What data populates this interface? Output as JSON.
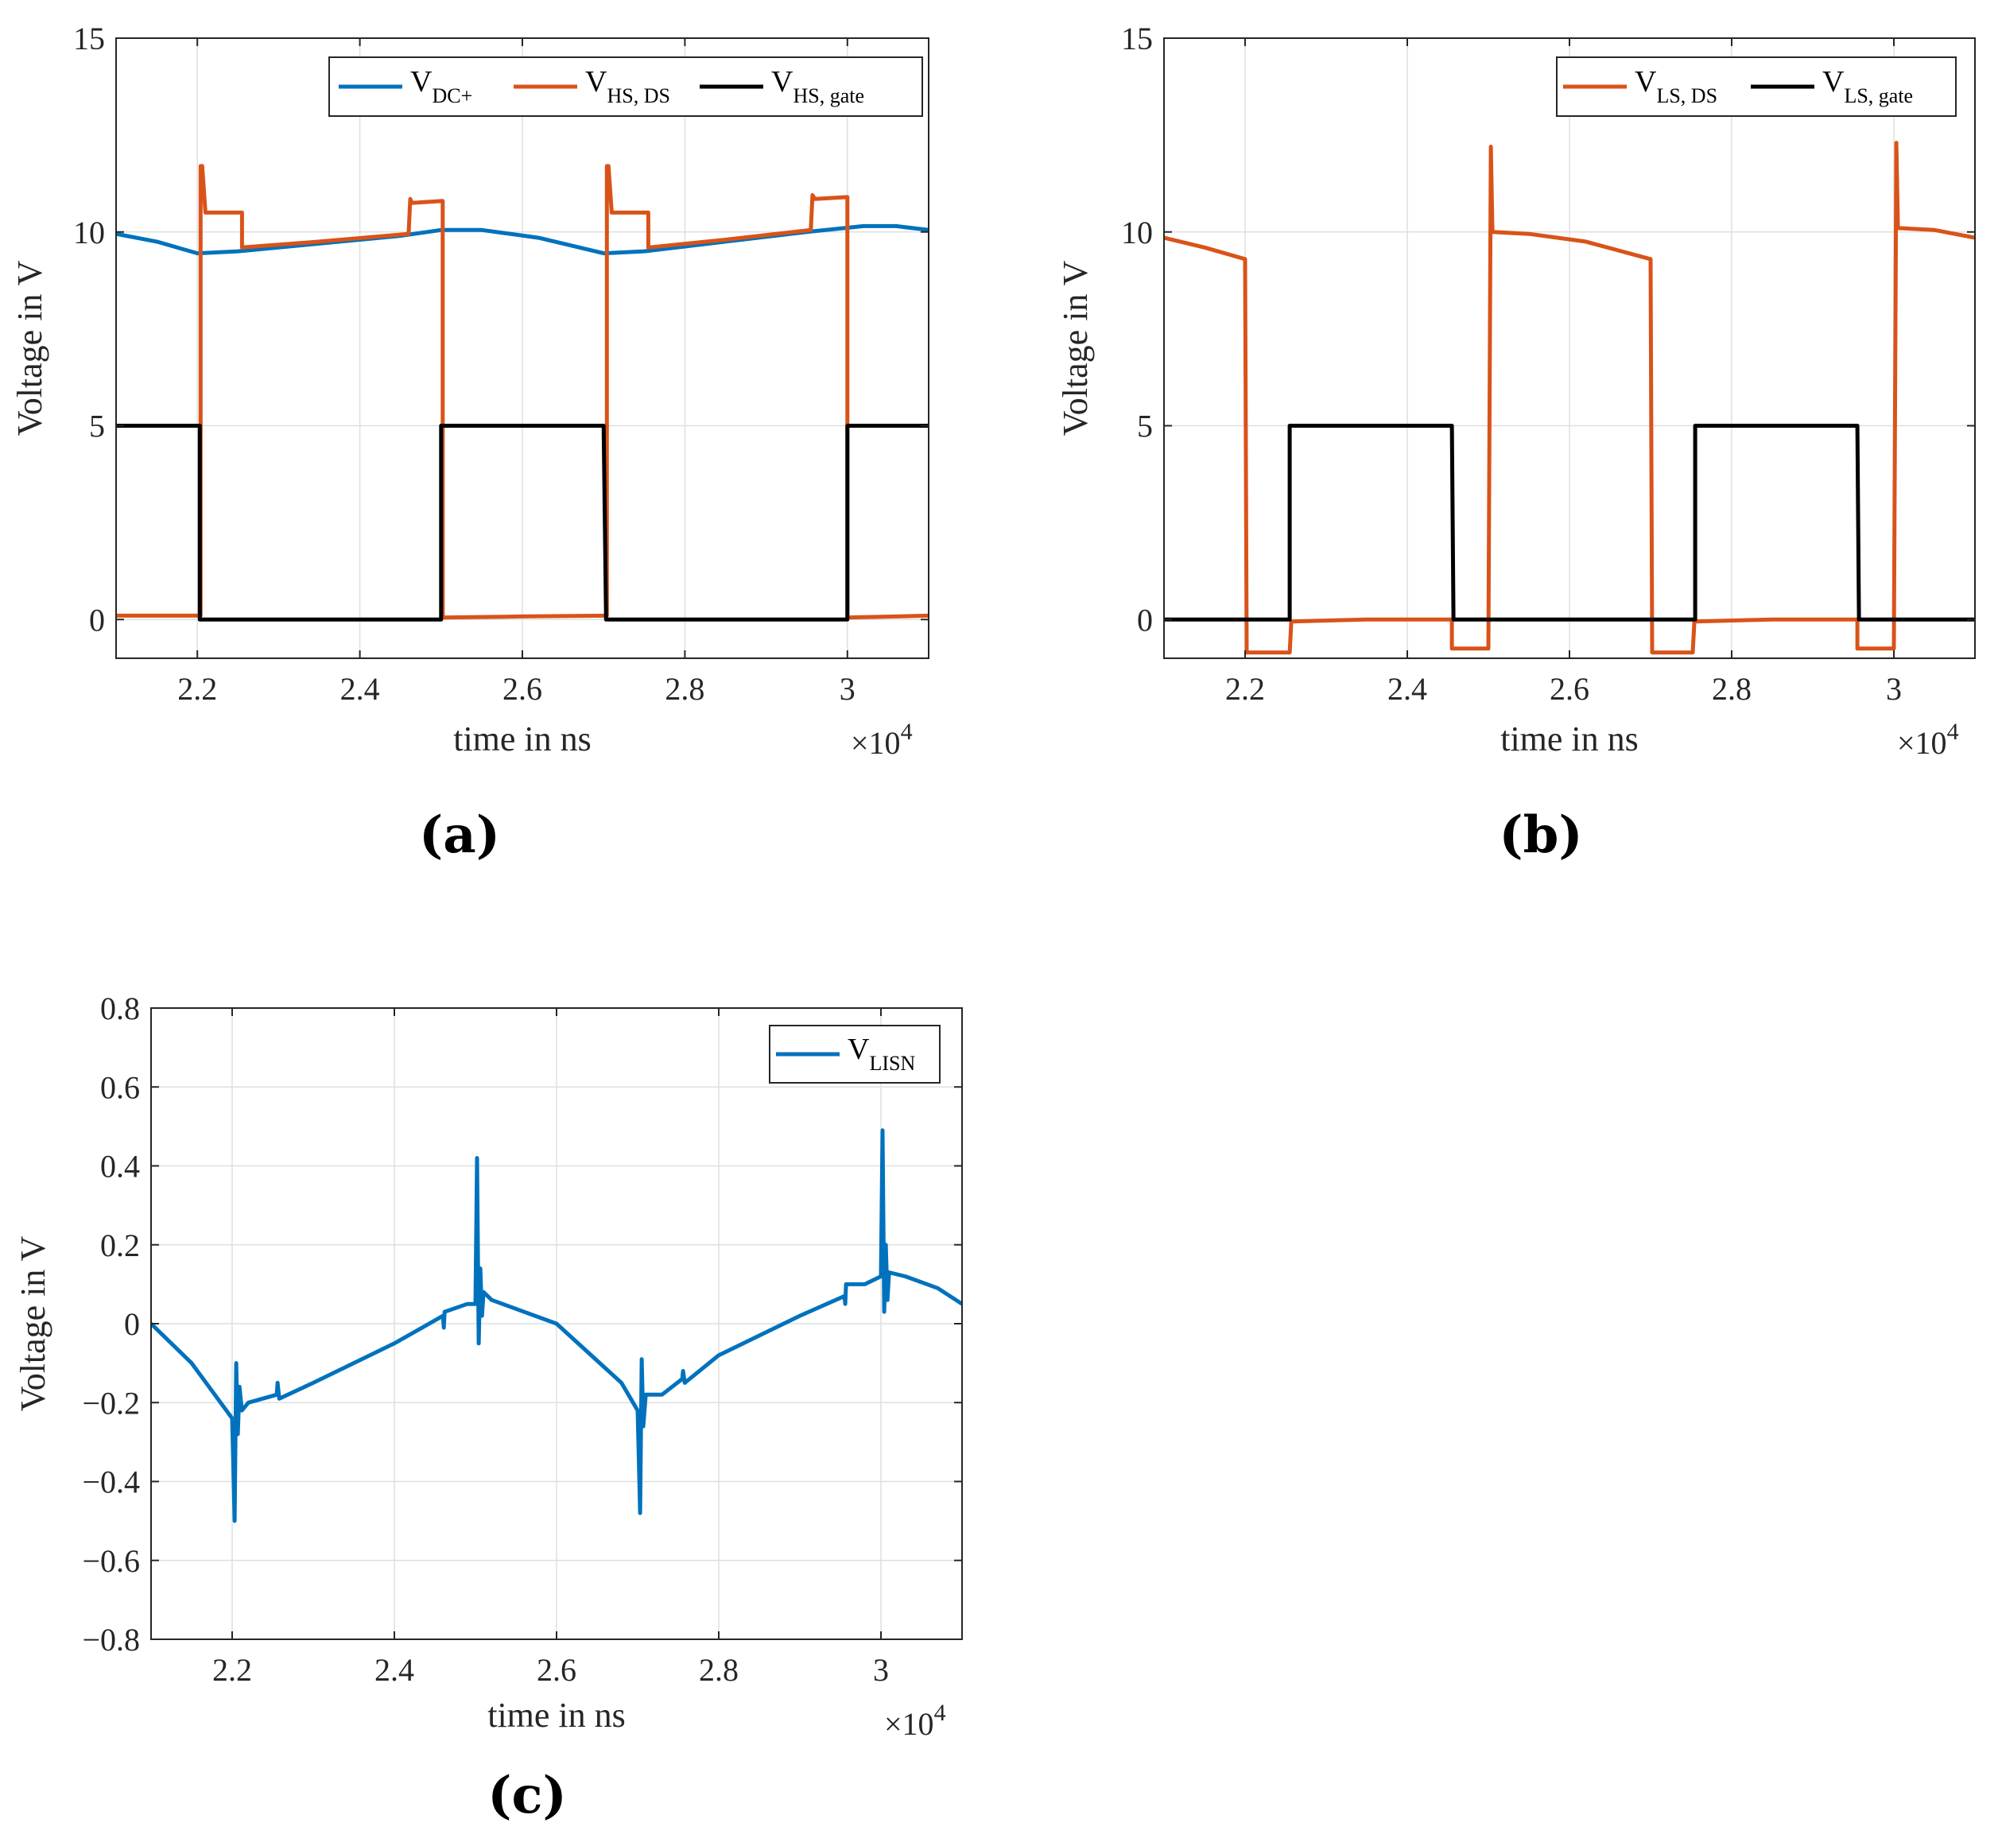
{
  "colors": {
    "blue": "#0072BD",
    "orange": "#D95319",
    "black": "#000000"
  },
  "panels": [
    {
      "label": "(a)"
    },
    {
      "label": "(b)"
    },
    {
      "label": "(c)"
    }
  ],
  "chart_data": [
    {
      "type": "line",
      "panel": "(a)",
      "title": "",
      "xlabel": "time in ns",
      "ylabel": "Voltage in V",
      "x_multiplier": "×10",
      "x_exponent": "4",
      "xlim": [
        2.1,
        3.1
      ],
      "ylim": [
        -1,
        15
      ],
      "xticks": [
        2.2,
        2.4,
        2.6,
        2.8,
        3
      ],
      "xtick_labels": [
        "2.2",
        "2.4",
        "2.6",
        "2.8",
        "3"
      ],
      "yticks": [
        0,
        5,
        10,
        15
      ],
      "ytick_labels": [
        "0",
        "5",
        "10",
        "15"
      ],
      "grid": true,
      "legend_position": "top-right",
      "legend_layout": "horizontal",
      "series": [
        {
          "name": "V",
          "sub": "DC+",
          "color": "blue",
          "points": [
            [
              2.1,
              9.95
            ],
            [
              2.15,
              9.75
            ],
            [
              2.2,
              9.45
            ],
            [
              2.25,
              9.5
            ],
            [
              2.35,
              9.7
            ],
            [
              2.45,
              9.9
            ],
            [
              2.5,
              10.05
            ],
            [
              2.55,
              10.05
            ],
            [
              2.62,
              9.85
            ],
            [
              2.7,
              9.45
            ],
            [
              2.75,
              9.5
            ],
            [
              2.85,
              9.75
            ],
            [
              2.95,
              10.0
            ],
            [
              3.02,
              10.15
            ],
            [
              3.06,
              10.15
            ],
            [
              3.1,
              10.05
            ]
          ]
        },
        {
          "name": "V",
          "sub": "HS, DS",
          "color": "orange",
          "points": [
            [
              2.1,
              0.1
            ],
            [
              2.204,
              0.1
            ],
            [
              2.204,
              11.7
            ],
            [
              2.206,
              11.7
            ],
            [
              2.21,
              10.5
            ],
            [
              2.255,
              10.5
            ],
            [
              2.255,
              9.6
            ],
            [
              2.35,
              9.75
            ],
            [
              2.46,
              9.95
            ],
            [
              2.462,
              10.85
            ],
            [
              2.464,
              10.75
            ],
            [
              2.502,
              10.8
            ],
            [
              2.502,
              0.05
            ],
            [
              2.6,
              0.08
            ],
            [
              2.704,
              0.1
            ],
            [
              2.704,
              11.7
            ],
            [
              2.706,
              11.7
            ],
            [
              2.71,
              10.5
            ],
            [
              2.755,
              10.5
            ],
            [
              2.755,
              9.6
            ],
            [
              2.85,
              9.8
            ],
            [
              2.955,
              10.05
            ],
            [
              2.957,
              10.95
            ],
            [
              2.96,
              10.85
            ],
            [
              3.0,
              10.9
            ],
            [
              3.0,
              0.05
            ],
            [
              3.1,
              0.1
            ]
          ]
        },
        {
          "name": "V",
          "sub": "HS, gate",
          "color": "black",
          "points": [
            [
              2.1,
              5
            ],
            [
              2.203,
              5
            ],
            [
              2.203,
              0
            ],
            [
              2.5,
              0
            ],
            [
              2.5,
              5
            ],
            [
              2.7,
              5
            ],
            [
              2.703,
              0
            ],
            [
              3.0,
              0
            ],
            [
              3.0,
              5
            ],
            [
              3.1,
              5
            ]
          ]
        }
      ]
    },
    {
      "type": "line",
      "panel": "(b)",
      "title": "",
      "xlabel": "time in ns",
      "ylabel": "Voltage in V",
      "x_multiplier": "×10",
      "x_exponent": "4",
      "xlim": [
        2.1,
        3.1
      ],
      "ylim": [
        -1,
        15
      ],
      "xticks": [
        2.2,
        2.4,
        2.6,
        2.8,
        3
      ],
      "xtick_labels": [
        "2.2",
        "2.4",
        "2.6",
        "2.8",
        "3"
      ],
      "yticks": [
        0,
        5,
        10,
        15
      ],
      "ytick_labels": [
        "0",
        "5",
        "10",
        "15"
      ],
      "grid": true,
      "legend_position": "top-right",
      "legend_layout": "horizontal",
      "series": [
        {
          "name": "V",
          "sub": "LS, DS",
          "color": "orange",
          "points": [
            [
              2.1,
              9.85
            ],
            [
              2.15,
              9.6
            ],
            [
              2.2,
              9.3
            ],
            [
              2.202,
              -0.85
            ],
            [
              2.255,
              -0.85
            ],
            [
              2.257,
              -0.05
            ],
            [
              2.35,
              0
            ],
            [
              2.455,
              0
            ],
            [
              2.455,
              -0.75
            ],
            [
              2.5,
              -0.75
            ],
            [
              2.503,
              12.2
            ],
            [
              2.505,
              10.0
            ],
            [
              2.55,
              9.95
            ],
            [
              2.62,
              9.75
            ],
            [
              2.7,
              9.3
            ],
            [
              2.702,
              -0.85
            ],
            [
              2.752,
              -0.85
            ],
            [
              2.754,
              -0.05
            ],
            [
              2.85,
              0
            ],
            [
              2.955,
              0
            ],
            [
              2.955,
              -0.75
            ],
            [
              3.0,
              -0.75
            ],
            [
              3.003,
              12.3
            ],
            [
              3.005,
              10.1
            ],
            [
              3.05,
              10.05
            ],
            [
              3.1,
              9.85
            ]
          ]
        },
        {
          "name": "V",
          "sub": "LS, gate",
          "color": "black",
          "points": [
            [
              2.1,
              0
            ],
            [
              2.255,
              0
            ],
            [
              2.255,
              5
            ],
            [
              2.455,
              5
            ],
            [
              2.457,
              0
            ],
            [
              2.755,
              0
            ],
            [
              2.755,
              5
            ],
            [
              2.955,
              5
            ],
            [
              2.957,
              0
            ],
            [
              3.1,
              0
            ]
          ]
        }
      ]
    },
    {
      "type": "line",
      "panel": "(c)",
      "title": "",
      "xlabel": "time in ns",
      "ylabel": "Voltage in V",
      "x_multiplier": "×10",
      "x_exponent": "4",
      "xlim": [
        2.1,
        3.1
      ],
      "ylim": [
        -0.8,
        0.8
      ],
      "xticks": [
        2.2,
        2.4,
        2.6,
        2.8,
        3
      ],
      "xtick_labels": [
        "2.2",
        "2.4",
        "2.6",
        "2.8",
        "3"
      ],
      "yticks": [
        -0.8,
        -0.6,
        -0.4,
        -0.2,
        0,
        0.2,
        0.4,
        0.6,
        0.8
      ],
      "ytick_labels": [
        "−0.8",
        "−0.6",
        "−0.4",
        "−0.2",
        "0",
        "0.2",
        "0.4",
        "0.6",
        "0.8"
      ],
      "grid": true,
      "legend_position": "top-right",
      "legend_layout": "horizontal",
      "series": [
        {
          "name": "V",
          "sub": "LISN",
          "color": "blue",
          "points": [
            [
              2.1,
              0.0
            ],
            [
              2.15,
              -0.1
            ],
            [
              2.2,
              -0.24
            ],
            [
              2.203,
              -0.5
            ],
            [
              2.205,
              -0.1
            ],
            [
              2.207,
              -0.28
            ],
            [
              2.209,
              -0.16
            ],
            [
              2.212,
              -0.22
            ],
            [
              2.22,
              -0.2
            ],
            [
              2.255,
              -0.18
            ],
            [
              2.256,
              -0.15
            ],
            [
              2.258,
              -0.19
            ],
            [
              2.3,
              -0.15
            ],
            [
              2.4,
              -0.05
            ],
            [
              2.46,
              0.02
            ],
            [
              2.461,
              -0.01
            ],
            [
              2.462,
              0.03
            ],
            [
              2.49,
              0.05
            ],
            [
              2.5,
              0.05
            ],
            [
              2.502,
              0.42
            ],
            [
              2.504,
              -0.05
            ],
            [
              2.506,
              0.14
            ],
            [
              2.508,
              0.02
            ],
            [
              2.51,
              0.08
            ],
            [
              2.52,
              0.06
            ],
            [
              2.6,
              0.0
            ],
            [
              2.68,
              -0.15
            ],
            [
              2.7,
              -0.22
            ],
            [
              2.703,
              -0.48
            ],
            [
              2.705,
              -0.09
            ],
            [
              2.707,
              -0.26
            ],
            [
              2.71,
              -0.18
            ],
            [
              2.73,
              -0.18
            ],
            [
              2.755,
              -0.14
            ],
            [
              2.756,
              -0.12
            ],
            [
              2.758,
              -0.15
            ],
            [
              2.8,
              -0.08
            ],
            [
              2.9,
              0.02
            ],
            [
              2.955,
              0.07
            ],
            [
              2.956,
              0.05
            ],
            [
              2.957,
              0.1
            ],
            [
              2.98,
              0.1
            ],
            [
              3.0,
              0.12
            ],
            [
              3.002,
              0.49
            ],
            [
              3.004,
              0.03
            ],
            [
              3.006,
              0.2
            ],
            [
              3.008,
              0.06
            ],
            [
              3.01,
              0.13
            ],
            [
              3.03,
              0.12
            ],
            [
              3.07,
              0.09
            ],
            [
              3.1,
              0.05
            ]
          ]
        }
      ]
    }
  ]
}
